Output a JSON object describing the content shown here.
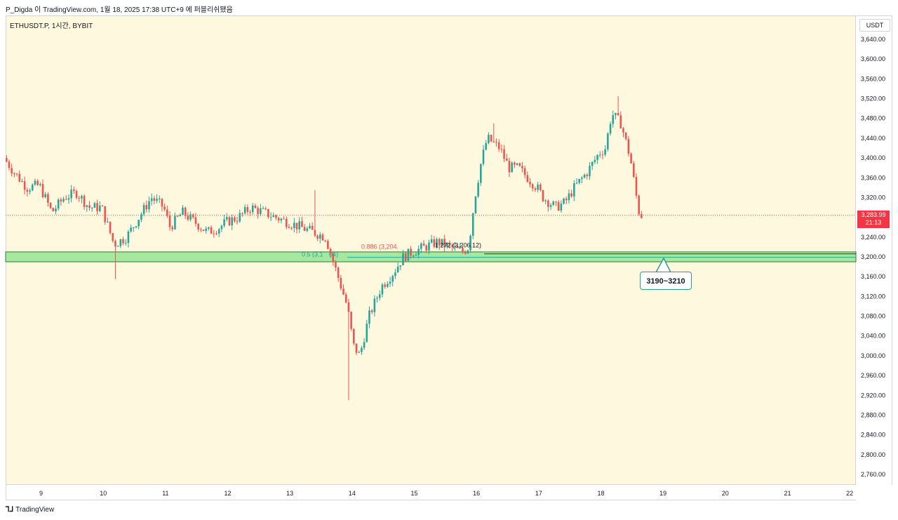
{
  "header": {
    "attribution": "P_Digda 이 TradingView.com, 1월 18, 2025 17:38 UTC+9 에 퍼블리쉬됐음"
  },
  "symbol_label": "ETHUSDT.P, 1시간, BYBIT",
  "currency": "USDT",
  "current_price": {
    "value": "3,283.99",
    "countdown": "21:13"
  },
  "footer": {
    "logo": "⅂⅃",
    "brand": "TradingView"
  },
  "annotations": {
    "zone_label": "3190~3210",
    "fib_05": "0.5 (3,1",
    "fib_05_tail": "04)",
    "fib_0886": "0.886 (3,204.",
    "fib_1272": "1.272 (3,206.12)"
  },
  "colors": {
    "up": "#26a69a",
    "down": "#ef5350",
    "zone_fill": "#a5e8a0",
    "zone_border": "#2e7d32",
    "background": "#fdf8de",
    "current_price": "#f23645"
  },
  "chart_data": {
    "type": "candlestick",
    "title": "ETHUSDT.P, 1시간, BYBIT",
    "ylim": [
      2740,
      3660
    ],
    "y_ticks": [
      "3,640.00",
      "3,600.00",
      "3,560.00",
      "3,520.00",
      "3,480.00",
      "3,440.00",
      "3,400.00",
      "3,360.00",
      "3,320.00",
      "3,280.00",
      "3,240.00",
      "3,200.00",
      "3,160.00",
      "3,120.00",
      "3,080.00",
      "3,040.00",
      "3,000.00",
      "2,960.00",
      "2,920.00",
      "2,880.00",
      "2,840.00",
      "2,800.00",
      "2,760.00"
    ],
    "y_tick_values": [
      3640,
      3600,
      3560,
      3520,
      3480,
      3440,
      3400,
      3360,
      3320,
      3280,
      3240,
      3200,
      3160,
      3120,
      3080,
      3040,
      3000,
      2960,
      2920,
      2880,
      2840,
      2800,
      2760
    ],
    "x_ticks": [
      "9",
      "10",
      "11",
      "12",
      "13",
      "14",
      "15",
      "16",
      "17",
      "18",
      "19",
      "20",
      "21",
      "22"
    ],
    "x_tick_days": [
      9,
      10,
      11,
      12,
      13,
      14,
      15,
      16,
      17,
      18,
      19,
      20,
      21,
      22
    ],
    "x_range_days": [
      8.43,
      22.1
    ],
    "price_path": [
      [
        8.43,
        3400
      ],
      [
        8.6,
        3370
      ],
      [
        8.8,
        3340
      ],
      [
        9.0,
        3345
      ],
      [
        9.2,
        3290
      ],
      [
        9.4,
        3320
      ],
      [
        9.6,
        3330
      ],
      [
        9.8,
        3300
      ],
      [
        10.0,
        3300
      ],
      [
        10.2,
        3225
      ],
      [
        10.4,
        3240
      ],
      [
        10.6,
        3280
      ],
      [
        10.8,
        3320
      ],
      [
        11.0,
        3300
      ],
      [
        11.1,
        3260
      ],
      [
        11.3,
        3290
      ],
      [
        11.5,
        3270
      ],
      [
        11.7,
        3250
      ],
      [
        11.9,
        3260
      ],
      [
        12.0,
        3270
      ],
      [
        12.2,
        3280
      ],
      [
        12.4,
        3300
      ],
      [
        12.6,
        3290
      ],
      [
        12.8,
        3280
      ],
      [
        13.0,
        3270
      ],
      [
        13.2,
        3260
      ],
      [
        13.4,
        3250
      ],
      [
        13.6,
        3240
      ],
      [
        13.8,
        3160
      ],
      [
        13.95,
        3100
      ],
      [
        14.05,
        3020
      ],
      [
        14.15,
        3000
      ],
      [
        14.3,
        3080
      ],
      [
        14.5,
        3140
      ],
      [
        14.7,
        3170
      ],
      [
        14.85,
        3200
      ],
      [
        15.0,
        3210
      ],
      [
        15.2,
        3220
      ],
      [
        15.4,
        3230
      ],
      [
        15.6,
        3220
      ],
      [
        15.8,
        3210
      ],
      [
        15.9,
        3220
      ],
      [
        16.0,
        3320
      ],
      [
        16.1,
        3390
      ],
      [
        16.2,
        3440
      ],
      [
        16.4,
        3420
      ],
      [
        16.55,
        3380
      ],
      [
        16.7,
        3380
      ],
      [
        16.85,
        3360
      ],
      [
        17.0,
        3340
      ],
      [
        17.1,
        3320
      ],
      [
        17.3,
        3300
      ],
      [
        17.45,
        3310
      ],
      [
        17.6,
        3340
      ],
      [
        17.8,
        3370
      ],
      [
        18.0,
        3410
      ],
      [
        18.1,
        3420
      ],
      [
        18.2,
        3490
      ],
      [
        18.35,
        3470
      ],
      [
        18.5,
        3400
      ],
      [
        18.6,
        3320
      ],
      [
        18.65,
        3284
      ]
    ],
    "wicks": [
      {
        "x": 13.93,
        "low": 2910
      },
      {
        "x": 10.2,
        "low": 3155
      },
      {
        "x": 18.25,
        "high": 3525
      },
      {
        "x": 16.25,
        "high": 3470
      },
      {
        "x": 13.4,
        "high": 3335
      }
    ],
    "zone": {
      "low": 3190,
      "high": 3210,
      "label": "3190~3210"
    },
    "fib_levels": [
      {
        "label": "0.5",
        "price": 3199.04
      },
      {
        "label": "0.886",
        "price": 3204.7
      },
      {
        "label": "1.272",
        "price": 3206.12
      }
    ],
    "last_price": 3283.99
  }
}
